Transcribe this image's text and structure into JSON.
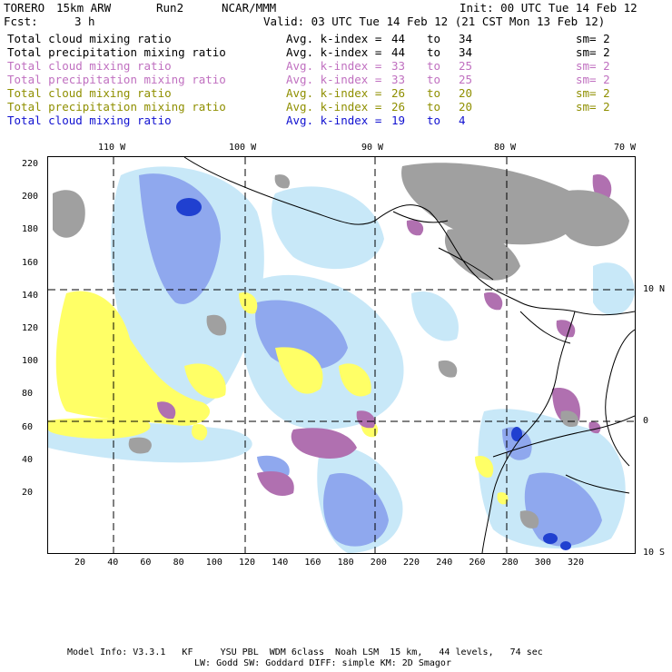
{
  "header": {
    "model": "TORERO",
    "resolution": "15km ARW",
    "run": "Run2",
    "org": "NCAR/MMM",
    "init": "Init: 00 UTC Tue 14 Feb 12",
    "fcst_label": "Fcst:",
    "fcst_value": "3 h",
    "valid": "Valid: 03 UTC Tue 14 Feb 12 (21 CST Mon 13 Feb 12)"
  },
  "legend": [
    {
      "field": "Total cloud mixing ratio",
      "kindex": "Avg. k-index =",
      "from": "44",
      "to_word": "to",
      "to": "34",
      "sm": "sm= 2",
      "color": "#000000"
    },
    {
      "field": "Total precipitation mixing ratio",
      "kindex": "Avg. k-index =",
      "from": "44",
      "to_word": "to",
      "to": "34",
      "sm": "sm= 2",
      "color": "#000000"
    },
    {
      "field": "Total cloud mixing ratio",
      "kindex": "Avg. k-index =",
      "from": "33",
      "to_word": "to",
      "to": "25",
      "sm": "sm= 2",
      "color": "#c070c0"
    },
    {
      "field": "Total precipitation mixing ratio",
      "kindex": "Avg. k-index =",
      "from": "33",
      "to_word": "to",
      "to": "25",
      "sm": "sm= 2",
      "color": "#c070c0"
    },
    {
      "field": "Total cloud mixing ratio",
      "kindex": "Avg. k-index =",
      "from": "26",
      "to_word": "to",
      "to": "20",
      "sm": "sm= 2",
      "color": "#8f8f00"
    },
    {
      "field": "Total precipitation mixing ratio",
      "kindex": "Avg. k-index =",
      "from": "26",
      "to_word": "to",
      "to": "20",
      "sm": "sm= 2",
      "color": "#8f8f00"
    },
    {
      "field": "Total cloud mixing ratio",
      "kindex": "Avg. k-index =",
      "from": "19",
      "to_word": "to",
      "to": "4",
      "sm": "",
      "color": "#1010d0"
    }
  ],
  "map": {
    "lon_labels": [
      "110 W",
      "100 W",
      "90 W",
      "80 W",
      "70 W"
    ],
    "lat_labels": [
      "10 N",
      "0",
      "10 S"
    ],
    "x_ticks": [
      "20",
      "40",
      "60",
      "80",
      "100",
      "120",
      "140",
      "160",
      "180",
      "200",
      "220",
      "240",
      "260",
      "280",
      "300",
      "320"
    ],
    "y_ticks": [
      "220",
      "200",
      "180",
      "160",
      "140",
      "120",
      "100",
      "80",
      "60",
      "40",
      "20"
    ],
    "colors": {
      "gray": "#a0a0a0",
      "pink": "#b070b0",
      "yellow": "#ffff66",
      "lightblue": "#c8e8f8",
      "blue": "#8fa8ee",
      "darkblue": "#2040d0"
    }
  },
  "footer": {
    "line1": "Model Info: V3.3.1   KF     YSU PBL  WDM 6class  Noah LSM  15 km,   44 levels,   74 sec",
    "line2": "LW: Godd SW: Goddard DIFF: simple KM: 2D Smagor"
  }
}
